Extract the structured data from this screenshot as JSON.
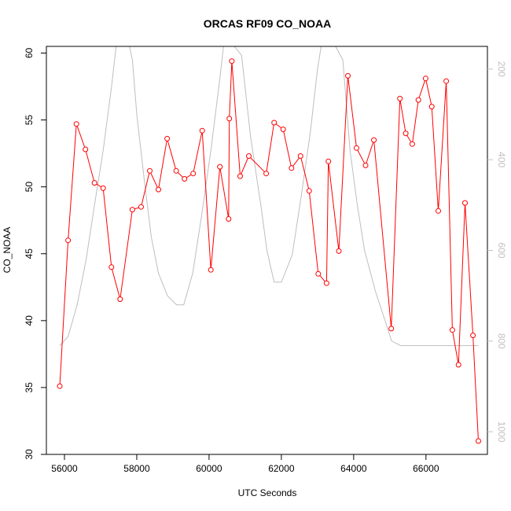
{
  "chart_data": {
    "type": "line",
    "title": "ORCAS RF09 CO_NOAA",
    "xlabel": "UTC Seconds",
    "ylabel": "CO_NOAA",
    "xlim": [
      55500,
      67700
    ],
    "ylim": [
      30,
      60.5
    ],
    "x_ticks": [
      56000,
      58000,
      60000,
      62000,
      64000,
      66000
    ],
    "x_tick_labels": [
      "56000",
      "58000",
      "60000",
      "62000",
      "64000",
      "66000"
    ],
    "y_ticks": [
      30,
      35,
      40,
      45,
      50,
      55,
      60
    ],
    "y_tick_labels": [
      "30",
      "35",
      "40",
      "45",
      "50",
      "55",
      "60"
    ],
    "y2_lim": [
      1050,
      150
    ],
    "y2_ticks": [
      200,
      400,
      600,
      800,
      1000
    ],
    "y2_tick_labels": [
      "200",
      "400",
      "600",
      "800",
      "1000"
    ],
    "series": [
      {
        "color": "#ff0000",
        "marker": "open-circle",
        "axis": "left",
        "x": [
          55870,
          56100,
          56330,
          56580,
          56830,
          57070,
          57300,
          57540,
          57880,
          58120,
          58360,
          58600,
          58840,
          59090,
          59320,
          59560,
          59810,
          60050,
          60300,
          60540,
          60560,
          60630,
          60860,
          61100,
          61580,
          61800,
          62050,
          62280,
          62530,
          62770,
          63020,
          63250,
          63300,
          63590,
          63840,
          64080,
          64330,
          64560,
          65040,
          65280,
          65440,
          65620,
          65790,
          65990,
          66160,
          66340,
          66560,
          66730,
          66900,
          67080,
          67300,
          67450
        ],
        "y": [
          35.1,
          46.0,
          54.7,
          52.8,
          50.3,
          49.9,
          44.0,
          41.6,
          48.3,
          48.5,
          51.2,
          49.8,
          53.6,
          51.2,
          50.6,
          51.0,
          54.2,
          43.8,
          51.5,
          47.6,
          55.1,
          59.4,
          50.8,
          52.3,
          51.0,
          54.8,
          54.3,
          51.4,
          52.3,
          49.7,
          43.5,
          42.8,
          51.9,
          45.2,
          58.3,
          52.9,
          51.6,
          53.5,
          39.4,
          56.6,
          54.0,
          53.2,
          56.5,
          58.1,
          56.0,
          48.2,
          57.9,
          39.3,
          36.7,
          48.8,
          38.9,
          31.0
        ]
      },
      {
        "color": "#bebebe",
        "marker": "none",
        "axis": "right",
        "x": [
          55870,
          56100,
          56350,
          56600,
          56830,
          57070,
          57300,
          57430,
          57500,
          57550,
          57650,
          57800,
          57880,
          58000,
          58200,
          58400,
          58600,
          58850,
          59100,
          59300,
          59550,
          59800,
          60050,
          60300,
          60400,
          60600,
          60700,
          60900,
          61150,
          61450,
          61600,
          61800,
          62000,
          62300,
          62550,
          62800,
          63000,
          63100,
          63200,
          63300,
          63500,
          63700,
          63900,
          64100,
          64300,
          64600,
          64850,
          65050,
          65300,
          65600,
          66000,
          66500,
          67000,
          67450
        ],
        "y": [
          810,
          790,
          720,
          620,
          500,
          380,
          240,
          150,
          100,
          90,
          90,
          110,
          180,
          300,
          440,
          570,
          650,
          700,
          720,
          720,
          650,
          520,
          380,
          220,
          120,
          80,
          70,
          170,
          350,
          510,
          600,
          670,
          670,
          610,
          480,
          340,
          200,
          130,
          90,
          80,
          90,
          180,
          380,
          500,
          600,
          690,
          750,
          800,
          810,
          810,
          810,
          810,
          810,
          810
        ]
      }
    ]
  }
}
